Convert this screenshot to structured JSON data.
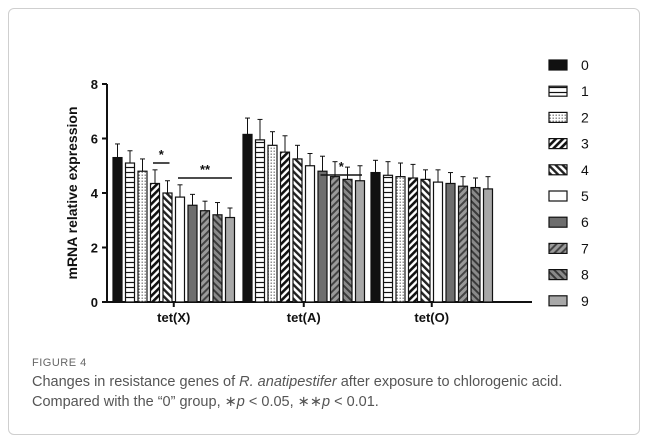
{
  "figure": {
    "label": "FIGURE 4",
    "caption": {
      "pre": "Changes in resistance genes of ",
      "species": "R. anatipestifer",
      "post": " after exposure to chlorogenic acid. Compared with the “0” group, ",
      "sig1_mark": "∗",
      "sig1_p": "p",
      "sig1_val": " < 0.05, ",
      "sig2_mark": "∗∗",
      "sig2_p": "p",
      "sig2_val": " < 0.01."
    }
  },
  "chart_data": {
    "type": "bar",
    "ylabel": "mRNA relative expression",
    "ylim": [
      0,
      8
    ],
    "yticks": [
      0,
      2,
      4,
      6,
      8
    ],
    "categories": [
      "tet(X)",
      "tet(A)",
      "tet(O)"
    ],
    "legend_position": "right",
    "series": [
      {
        "name": "0",
        "values": [
          5.3,
          6.15,
          4.75
        ],
        "errors": [
          0.5,
          0.6,
          0.45
        ],
        "style": "solid-black"
      },
      {
        "name": "1",
        "values": [
          5.1,
          5.95,
          4.65
        ],
        "errors": [
          0.45,
          0.75,
          0.5
        ],
        "style": "white-hline"
      },
      {
        "name": "2",
        "values": [
          4.8,
          5.75,
          4.6
        ],
        "errors": [
          0.45,
          0.5,
          0.5
        ],
        "style": "dotted"
      },
      {
        "name": "3",
        "values": [
          4.35,
          5.5,
          4.55
        ],
        "errors": [
          0.5,
          0.6,
          0.5
        ],
        "style": "diag-black"
      },
      {
        "name": "4",
        "values": [
          4.0,
          5.25,
          4.5
        ],
        "errors": [
          0.45,
          0.5,
          0.35
        ],
        "style": "diag-mixed"
      },
      {
        "name": "5",
        "values": [
          3.85,
          5.0,
          4.4
        ],
        "errors": [
          0.45,
          0.45,
          0.45
        ],
        "style": "white"
      },
      {
        "name": "6",
        "values": [
          3.55,
          4.8,
          4.35
        ],
        "errors": [
          0.4,
          0.55,
          0.4
        ],
        "style": "solid-gray"
      },
      {
        "name": "7",
        "values": [
          3.35,
          4.6,
          4.25
        ],
        "errors": [
          0.35,
          0.55,
          0.35
        ],
        "style": "diag-gray"
      },
      {
        "name": "8",
        "values": [
          3.2,
          4.5,
          4.2
        ],
        "errors": [
          0.45,
          0.45,
          0.35
        ],
        "style": "diag-gray2"
      },
      {
        "name": "9",
        "values": [
          3.1,
          4.45,
          4.15
        ],
        "errors": [
          0.35,
          0.55,
          0.45
        ],
        "style": "light-gray"
      }
    ],
    "significance": [
      {
        "group": "tet(X)",
        "from": "3",
        "to": "4",
        "label": "*"
      },
      {
        "group": "tet(X)",
        "from": "5",
        "to": "9",
        "label": "**"
      },
      {
        "group": "tet(A)",
        "from": "6",
        "to": "9",
        "label": "*"
      }
    ]
  }
}
